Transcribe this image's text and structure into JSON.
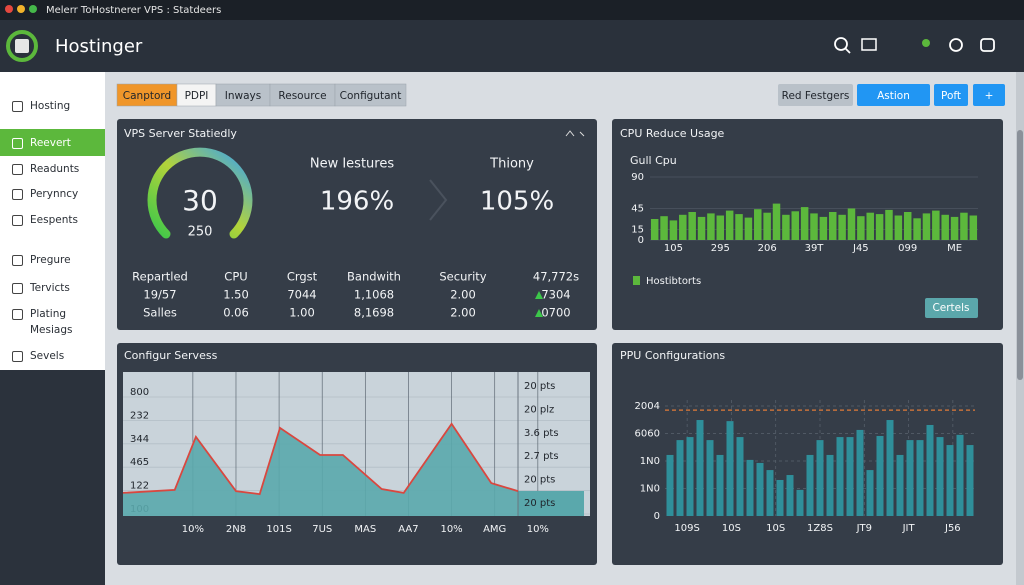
{
  "window": {
    "title": "Melerr ToHostnerer VPS : Statdeers"
  },
  "header": {
    "brand": "Hostinger"
  },
  "sidebar": {
    "items": [
      "Hosting",
      "Reevert",
      "Readunts",
      "Perynncy",
      "Eespents",
      "Pregure",
      "Tervicts",
      "Plating Mesiags",
      "Sevels"
    ],
    "active": 1
  },
  "tabs": {
    "items": [
      "Canptord",
      "PDPI",
      "Inways",
      "Resource",
      "Configutant"
    ],
    "active": 0
  },
  "toolbar": {
    "buttons": [
      "Red Festgers",
      "Astion",
      "Poft",
      "+"
    ]
  },
  "stats_panel": {
    "title": "VPS Server Statiedly",
    "gauge": {
      "value": "30",
      "sub": "250"
    },
    "metrics": [
      {
        "label": "New Iestures",
        "value": "196%"
      },
      {
        "label": "Thiony",
        "value": "105%"
      }
    ],
    "table": {
      "header": [
        "Repartled",
        "CPU",
        "Crgst",
        "Bandwith",
        "Security",
        "47,772s"
      ],
      "rows": [
        [
          "19/57",
          "1.50",
          "7044",
          "1,1068",
          "2.00",
          "7304"
        ],
        [
          "Salles",
          "0.06",
          "1.00",
          "8,1698",
          "2.00",
          "0700"
        ]
      ]
    }
  },
  "chart_data": [
    {
      "type": "bar",
      "title": "CPU Reduce Usage",
      "subtitle": "Gull Cpu",
      "categories": [
        null,
        null,
        "105",
        null,
        null,
        null,
        null,
        "295",
        null,
        null,
        null,
        null,
        "206",
        null,
        null,
        null,
        null,
        "39T",
        null,
        null,
        null,
        null,
        "J45",
        null,
        null,
        null,
        null,
        "099",
        null,
        null,
        null,
        null,
        "ME",
        null,
        null
      ],
      "series": [
        {
          "name": "Hostibtorts",
          "color": "#5cb83c",
          "values": [
            30,
            34,
            28,
            36,
            40,
            33,
            38,
            35,
            42,
            37,
            32,
            44,
            39,
            52,
            36,
            41,
            47,
            38,
            33,
            40,
            36,
            45,
            34,
            39,
            37,
            43,
            35,
            40,
            31,
            38,
            42,
            36,
            33,
            39,
            35
          ]
        }
      ],
      "ylim": [
        0,
        90
      ],
      "yticks": [
        0,
        15,
        45,
        90
      ],
      "grid": true,
      "button": "Certels"
    },
    {
      "type": "area",
      "title": "Configur Servess",
      "x": [
        -1.62,
        -0.42,
        0.07,
        1.0,
        1.55,
        2.02,
        2.95,
        3.48,
        4.38,
        4.89,
        6.0,
        6.92,
        7.54
      ],
      "xlim": [
        -1.62,
        9.21
      ],
      "xtick_labels": [
        "10%",
        "2N8",
        "101S",
        "7US",
        "MAS",
        "AA7",
        "10%",
        "AMG",
        "10%"
      ],
      "ycategories": [
        "100",
        "122",
        "465",
        "344",
        "232",
        "800"
      ],
      "ylim": [
        0,
        5
      ],
      "series": [
        {
          "color": "#d9473f",
          "fill": "#5aa8ac",
          "values": [
            0.9,
            1.03,
            3.3,
            0.98,
            0.85,
            3.68,
            2.52,
            2.52,
            1.07,
            0.9,
            3.85,
            1.32,
            0.98
          ]
        }
      ],
      "right_labels": [
        "20 pts",
        "20 plz",
        "3.6 pts",
        "2.7 pts",
        "20 pts",
        "20 pts"
      ],
      "grid": true
    },
    {
      "type": "bar",
      "title": "PPU Configurations",
      "xtick_labels": [
        "109S",
        "10S",
        "10S",
        "1Z8S",
        "JT9",
        "JIT",
        "J56"
      ],
      "ycategories": [
        "0",
        "1N0",
        "1N0",
        "6060",
        "2004"
      ],
      "ylim": [
        0,
        4
      ],
      "series": [
        {
          "color": "#2f8f9a",
          "values": [
            2.22,
            2.76,
            2.87,
            3.49,
            2.76,
            2.22,
            3.45,
            2.87,
            2.04,
            1.93,
            1.67,
            1.31,
            1.49,
            0.95,
            2.22,
            2.76,
            2.22,
            2.87,
            2.87,
            3.13,
            1.67,
            2.91,
            3.49,
            2.22,
            2.76,
            2.76,
            3.31,
            2.87,
            2.58,
            2.95,
            2.58
          ]
        }
      ],
      "reference_line": 3.85,
      "reference_color": "#e07b39",
      "grid": true
    }
  ]
}
